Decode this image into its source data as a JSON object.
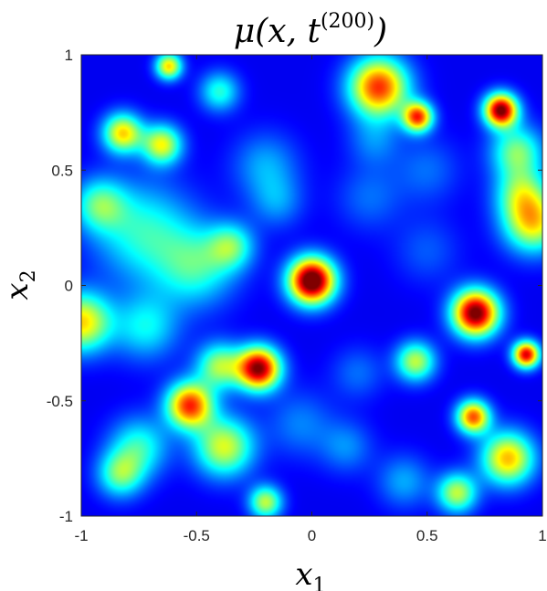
{
  "chart_data": {
    "type": "heatmap",
    "title": "μ(x, t(200))",
    "xlabel": "x1",
    "ylabel": "x2",
    "xlim": [
      -1,
      1
    ],
    "ylim": [
      -1,
      1
    ],
    "xticks": [
      -1,
      -0.5,
      0,
      0.5,
      1
    ],
    "yticks": [
      -1,
      -0.5,
      0,
      0.5,
      1
    ],
    "xtick_labels": [
      "-1",
      "-0.5",
      "0",
      "0.5",
      "1"
    ],
    "ytick_labels": [
      "-1",
      "-0.5",
      "0",
      "0.5",
      "1"
    ],
    "colormap": "jet",
    "background_color": "#00008f",
    "grid": false,
    "intensity_range": [
      0,
      1
    ],
    "blobs": [
      {
        "x": 0.0,
        "y": 0.02,
        "peak": 1.0,
        "spread": 0.07
      },
      {
        "x": 0.71,
        "y": -0.12,
        "peak": 0.92,
        "spread": 0.07
      },
      {
        "x": -0.23,
        "y": -0.36,
        "peak": 0.88,
        "spread": 0.065
      },
      {
        "x": 0.82,
        "y": 0.76,
        "peak": 0.9,
        "spread": 0.05
      },
      {
        "x": 0.93,
        "y": -0.3,
        "peak": 0.8,
        "spread": 0.04
      },
      {
        "x": 0.29,
        "y": 0.86,
        "peak": 0.72,
        "spread": 0.09
      },
      {
        "x": 0.46,
        "y": 0.73,
        "peak": 0.7,
        "spread": 0.045
      },
      {
        "x": -0.53,
        "y": -0.52,
        "peak": 0.72,
        "spread": 0.07
      },
      {
        "x": 0.7,
        "y": -0.57,
        "peak": 0.68,
        "spread": 0.05
      },
      {
        "x": 0.85,
        "y": -0.75,
        "peak": 0.58,
        "spread": 0.08
      },
      {
        "x": -0.82,
        "y": 0.66,
        "peak": 0.55,
        "spread": 0.06
      },
      {
        "x": -0.65,
        "y": 0.61,
        "peak": 0.5,
        "spread": 0.06
      },
      {
        "x": -1.0,
        "y": -0.16,
        "peak": 0.55,
        "spread": 0.09
      },
      {
        "x": 0.96,
        "y": 0.27,
        "peak": 0.52,
        "spread": 0.09
      },
      {
        "x": -0.62,
        "y": 0.95,
        "peak": 0.55,
        "spread": 0.04
      },
      {
        "x": -0.38,
        "y": -0.7,
        "peak": 0.48,
        "spread": 0.09
      },
      {
        "x": -0.4,
        "y": -0.35,
        "peak": 0.42,
        "spread": 0.07
      },
      {
        "x": 0.45,
        "y": -0.33,
        "peak": 0.45,
        "spread": 0.06
      },
      {
        "x": 0.63,
        "y": -0.9,
        "peak": 0.45,
        "spread": 0.06
      },
      {
        "x": -0.2,
        "y": -0.94,
        "peak": 0.45,
        "spread": 0.05
      },
      {
        "x": -0.83,
        "y": -0.82,
        "peak": 0.35,
        "spread": 0.07
      },
      {
        "x": -0.73,
        "y": 0.23,
        "peak": 0.3,
        "spread": 0.15
      },
      {
        "x": -0.92,
        "y": 0.35,
        "peak": 0.32,
        "spread": 0.08
      },
      {
        "x": -0.5,
        "y": 0.08,
        "peak": 0.3,
        "spread": 0.12
      },
      {
        "x": -0.72,
        "y": -0.18,
        "peak": 0.26,
        "spread": 0.1
      },
      {
        "x": -0.35,
        "y": 0.17,
        "peak": 0.32,
        "spread": 0.07
      },
      {
        "x": -0.75,
        "y": -0.7,
        "peak": 0.3,
        "spread": 0.09
      },
      {
        "x": 0.89,
        "y": 0.58,
        "peak": 0.38,
        "spread": 0.08
      },
      {
        "x": 0.91,
        "y": 0.4,
        "peak": 0.34,
        "spread": 0.08
      },
      {
        "x": -0.4,
        "y": 0.84,
        "peak": 0.3,
        "spread": 0.06
      },
      {
        "x": -0.2,
        "y": 0.52,
        "peak": 0.18,
        "spread": 0.1
      },
      {
        "x": -0.15,
        "y": 0.36,
        "peak": 0.15,
        "spread": 0.08
      },
      {
        "x": 0.25,
        "y": 0.38,
        "peak": 0.12,
        "spread": 0.1
      },
      {
        "x": 0.5,
        "y": 0.5,
        "peak": 0.12,
        "spread": 0.1
      },
      {
        "x": 0.5,
        "y": 0.15,
        "peak": 0.1,
        "spread": 0.1
      },
      {
        "x": 0.2,
        "y": -0.38,
        "peak": 0.12,
        "spread": 0.08
      },
      {
        "x": 0.15,
        "y": -0.7,
        "peak": 0.15,
        "spread": 0.08
      },
      {
        "x": 0.4,
        "y": -0.85,
        "peak": 0.18,
        "spread": 0.08
      },
      {
        "x": -0.05,
        "y": -0.6,
        "peak": 0.14,
        "spread": 0.1
      },
      {
        "x": 0.27,
        "y": 0.63,
        "peak": 0.14,
        "spread": 0.08
      }
    ]
  }
}
